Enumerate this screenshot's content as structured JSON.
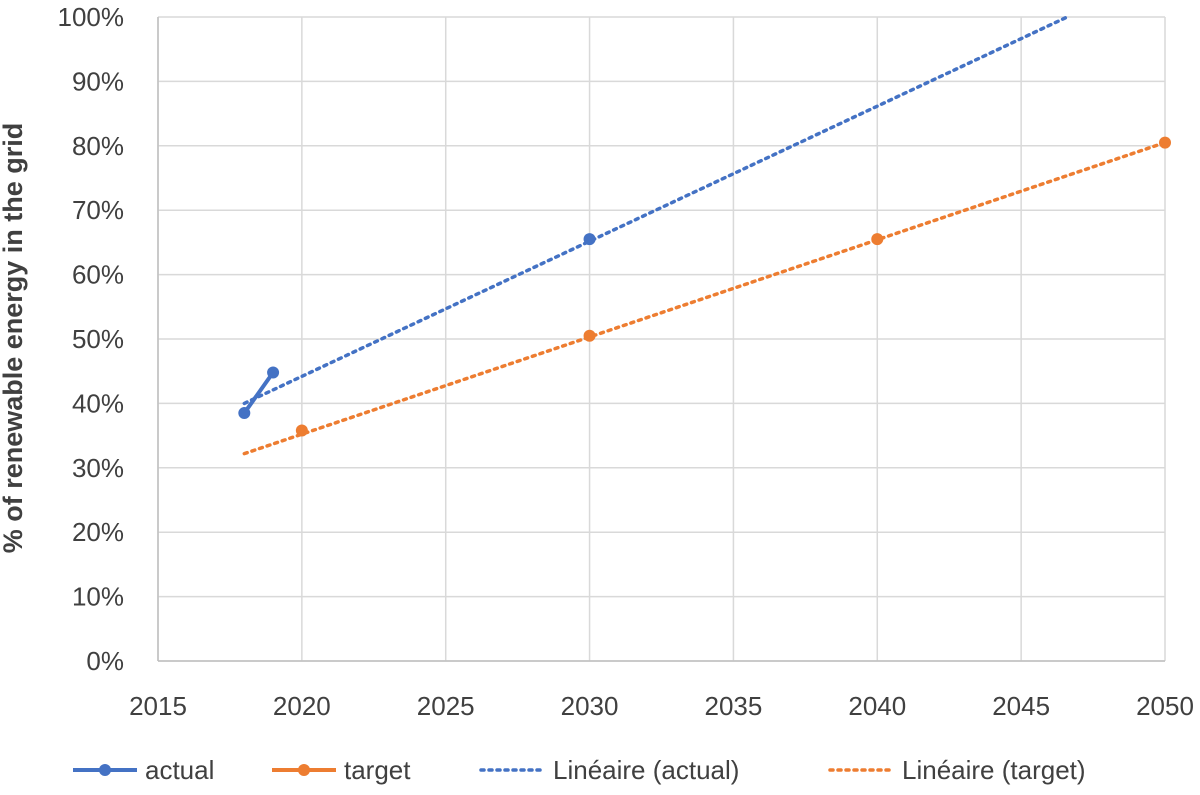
{
  "chart_data": {
    "type": "scatter",
    "title": "",
    "xlabel": "",
    "ylabel": "% of renewable energy in the grid",
    "xlim": [
      2015,
      2050
    ],
    "ylim": [
      0,
      100
    ],
    "x_ticks": [
      2015,
      2020,
      2025,
      2030,
      2035,
      2040,
      2045,
      2050
    ],
    "x_tick_labels": [
      "2015",
      "2020",
      "2025",
      "2030",
      "2035",
      "2040",
      "2045",
      "2050"
    ],
    "y_ticks": [
      0,
      10,
      20,
      30,
      40,
      50,
      60,
      70,
      80,
      90,
      100
    ],
    "y_tick_labels": [
      "0%",
      "10%",
      "20%",
      "30%",
      "40%",
      "50%",
      "60%",
      "70%",
      "80%",
      "90%",
      "100%"
    ],
    "grid": true,
    "legend_position": "bottom",
    "series": [
      {
        "name": "actual",
        "color": "#4472C4",
        "style": "line-markers",
        "points": [
          {
            "x": 2018,
            "y": 38.5
          },
          {
            "x": 2019,
            "y": 44.8
          }
        ]
      },
      {
        "name": "target",
        "color": "#ED7D31",
        "style": "markers",
        "points": [
          {
            "x": 2020,
            "y": 35.8
          },
          {
            "x": 2030,
            "y": 50.5
          },
          {
            "x": 2040,
            "y": 65.5
          },
          {
            "x": 2050,
            "y": 80.5
          }
        ]
      }
    ],
    "trendlines": [
      {
        "name": "Linéaire (actual)",
        "of_series": "actual",
        "color": "#4472C4",
        "style": "dotted",
        "from": {
          "x": 2018,
          "y": 40.0
        },
        "to": {
          "x": 2046.6,
          "y": 100.0
        },
        "extra_marker": {
          "x": 2030,
          "y": 65.5
        }
      },
      {
        "name": "Linéaire (target)",
        "of_series": "target",
        "color": "#ED7D31",
        "style": "dotted",
        "from": {
          "x": 2018,
          "y": 32.2
        },
        "to": {
          "x": 2050,
          "y": 80.5
        }
      }
    ]
  }
}
